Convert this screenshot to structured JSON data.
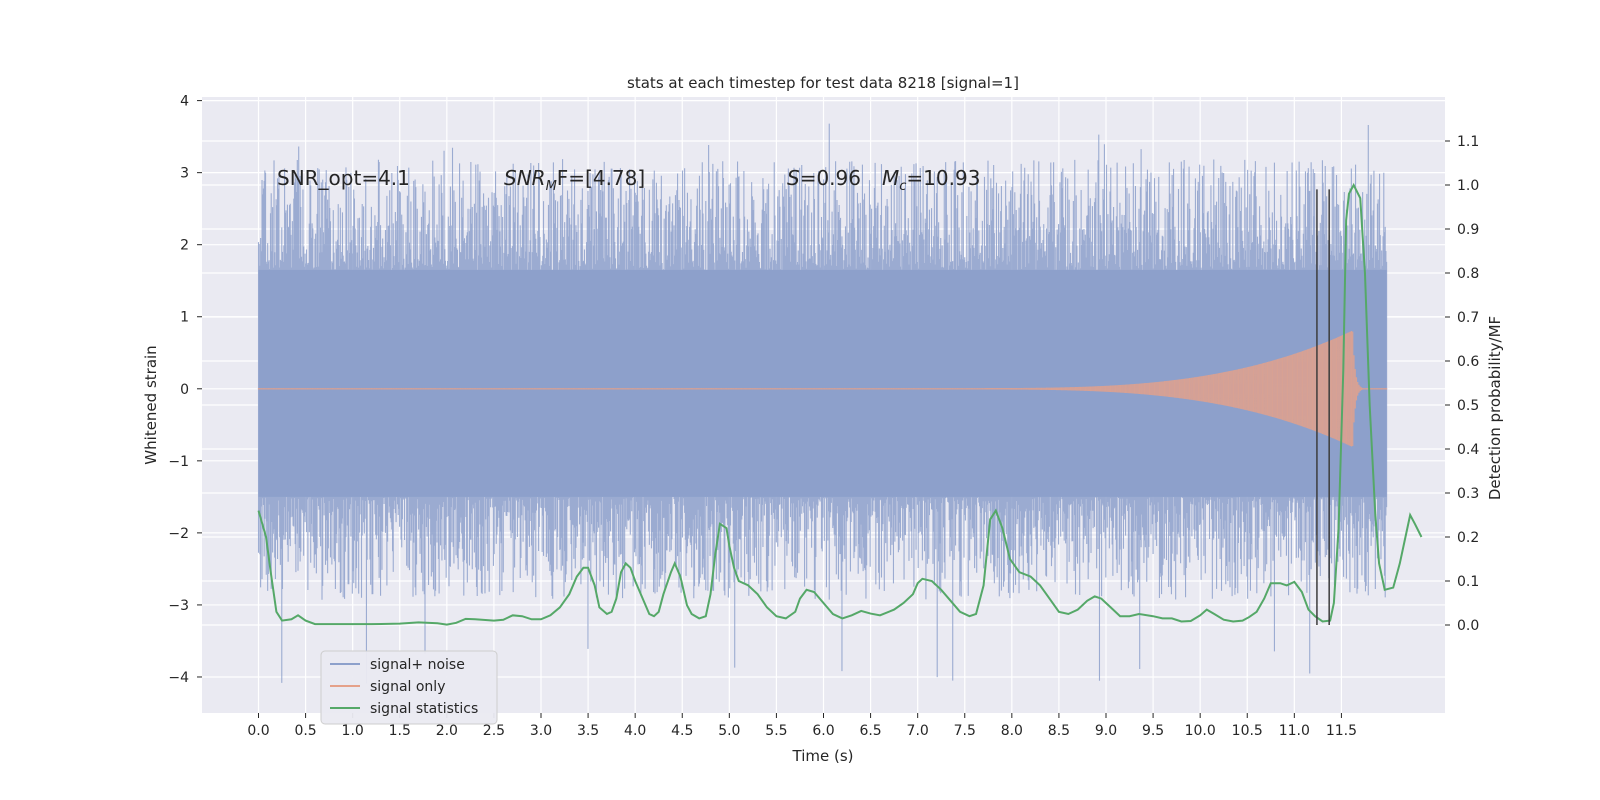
{
  "chart_data": {
    "type": "line",
    "title": "stats at each timestep for test data 8218 [signal=1]",
    "xlabel": "Time (s)",
    "ylabel_left": "Whitened strain",
    "ylabel_right": "Detection probability/MF",
    "xlim": [
      -0.6,
      12.6
    ],
    "ylim_left": [
      -4.5,
      4.05
    ],
    "ylim_right": [
      -0.2,
      1.2
    ],
    "x_ticks": [
      "0.0",
      "0.5",
      "1.0",
      "1.5",
      "2.0",
      "2.5",
      "3.0",
      "3.5",
      "4.0",
      "4.5",
      "5.0",
      "5.5",
      "6.0",
      "6.5",
      "7.0",
      "7.5",
      "8.0",
      "8.5",
      "9.0",
      "9.5",
      "10.0",
      "10.5",
      "11.0",
      "11.5"
    ],
    "y_ticks_left": [
      "4",
      "3",
      "2",
      "1",
      "0",
      "−1",
      "−2",
      "−3",
      "−4"
    ],
    "y_ticks_right": [
      "1.1",
      "1.0",
      "0.9",
      "0.8",
      "0.7",
      "0.6",
      "0.5",
      "0.4",
      "0.3",
      "0.2",
      "0.1",
      "0.0"
    ],
    "annotations": {
      "snr_opt": "SNR_opt=4.1",
      "snr_mf_base": "SNR",
      "snr_mf_sub": "M",
      "snr_mf_rest": "F=[4.78]",
      "s_base": "S",
      "s_value": "=0.96",
      "mc_base": "M",
      "mc_sub": "c",
      "mc_value": "=10.93"
    },
    "vlines_x": [
      11.24,
      11.37
    ],
    "vlines_range_right": [
      0.0,
      0.99
    ],
    "legend": {
      "placement": "lower-left",
      "entries": [
        {
          "label": "signal+ noise",
          "color": "#8da0cb"
        },
        {
          "label": "signal only",
          "color": "#e5a18a"
        },
        {
          "label": "signal statistics",
          "color": "#55a868"
        }
      ]
    },
    "series": [
      {
        "name": "signal+ noise",
        "axis": "left",
        "color": "#8da0cb",
        "x_range": [
          0.0,
          11.98
        ],
        "core_band": [
          -1.5,
          1.65
        ],
        "max_peak": 3.7,
        "min_peak": -4.1
      },
      {
        "name": "signal only",
        "axis": "left",
        "color": "#e5a18a",
        "x_range": [
          0.0,
          11.98
        ],
        "chirp_start": 7.5,
        "peak_time": 11.62,
        "peak_amplitude": 0.8
      },
      {
        "name": "signal statistics",
        "axis": "right",
        "color": "#55a868",
        "points": [
          [
            0.0,
            0.26
          ],
          [
            0.08,
            0.2
          ],
          [
            0.13,
            0.12
          ],
          [
            0.19,
            0.03
          ],
          [
            0.25,
            0.01
          ],
          [
            0.35,
            0.013
          ],
          [
            0.42,
            0.022
          ],
          [
            0.5,
            0.01
          ],
          [
            0.6,
            0.002
          ],
          [
            0.8,
            0.002
          ],
          [
            1.0,
            0.002
          ],
          [
            1.2,
            0.002
          ],
          [
            1.5,
            0.003
          ],
          [
            1.7,
            0.006
          ],
          [
            1.9,
            0.004
          ],
          [
            2.0,
            0.001
          ],
          [
            2.1,
            0.005
          ],
          [
            2.2,
            0.014
          ],
          [
            2.3,
            0.013
          ],
          [
            2.5,
            0.01
          ],
          [
            2.6,
            0.012
          ],
          [
            2.7,
            0.022
          ],
          [
            2.8,
            0.02
          ],
          [
            2.9,
            0.013
          ],
          [
            3.0,
            0.013
          ],
          [
            3.1,
            0.022
          ],
          [
            3.2,
            0.04
          ],
          [
            3.3,
            0.07
          ],
          [
            3.38,
            0.11
          ],
          [
            3.45,
            0.13
          ],
          [
            3.5,
            0.13
          ],
          [
            3.57,
            0.09
          ],
          [
            3.62,
            0.04
          ],
          [
            3.7,
            0.025
          ],
          [
            3.75,
            0.03
          ],
          [
            3.8,
            0.06
          ],
          [
            3.85,
            0.12
          ],
          [
            3.9,
            0.14
          ],
          [
            3.95,
            0.13
          ],
          [
            4.0,
            0.1
          ],
          [
            4.1,
            0.05
          ],
          [
            4.15,
            0.025
          ],
          [
            4.2,
            0.02
          ],
          [
            4.25,
            0.03
          ],
          [
            4.3,
            0.07
          ],
          [
            4.38,
            0.12
          ],
          [
            4.42,
            0.14
          ],
          [
            4.48,
            0.11
          ],
          [
            4.55,
            0.045
          ],
          [
            4.6,
            0.025
          ],
          [
            4.68,
            0.015
          ],
          [
            4.75,
            0.02
          ],
          [
            4.8,
            0.07
          ],
          [
            4.85,
            0.16
          ],
          [
            4.9,
            0.23
          ],
          [
            4.97,
            0.22
          ],
          [
            5.0,
            0.18
          ],
          [
            5.05,
            0.13
          ],
          [
            5.1,
            0.1
          ],
          [
            5.2,
            0.09
          ],
          [
            5.3,
            0.07
          ],
          [
            5.4,
            0.04
          ],
          [
            5.5,
            0.02
          ],
          [
            5.6,
            0.015
          ],
          [
            5.7,
            0.03
          ],
          [
            5.75,
            0.06
          ],
          [
            5.82,
            0.08
          ],
          [
            5.9,
            0.075
          ],
          [
            6.0,
            0.05
          ],
          [
            6.1,
            0.025
          ],
          [
            6.2,
            0.015
          ],
          [
            6.3,
            0.022
          ],
          [
            6.4,
            0.032
          ],
          [
            6.5,
            0.026
          ],
          [
            6.6,
            0.022
          ],
          [
            6.75,
            0.035
          ],
          [
            6.85,
            0.05
          ],
          [
            6.95,
            0.07
          ],
          [
            7.0,
            0.095
          ],
          [
            7.05,
            0.105
          ],
          [
            7.15,
            0.1
          ],
          [
            7.25,
            0.08
          ],
          [
            7.35,
            0.055
          ],
          [
            7.45,
            0.03
          ],
          [
            7.55,
            0.02
          ],
          [
            7.62,
            0.025
          ],
          [
            7.7,
            0.09
          ],
          [
            7.77,
            0.24
          ],
          [
            7.83,
            0.26
          ],
          [
            7.9,
            0.22
          ],
          [
            7.98,
            0.15
          ],
          [
            8.08,
            0.12
          ],
          [
            8.2,
            0.11
          ],
          [
            8.3,
            0.09
          ],
          [
            8.4,
            0.06
          ],
          [
            8.5,
            0.03
          ],
          [
            8.6,
            0.025
          ],
          [
            8.7,
            0.035
          ],
          [
            8.8,
            0.055
          ],
          [
            8.88,
            0.065
          ],
          [
            8.95,
            0.06
          ],
          [
            9.05,
            0.04
          ],
          [
            9.15,
            0.02
          ],
          [
            9.25,
            0.02
          ],
          [
            9.35,
            0.025
          ],
          [
            9.5,
            0.02
          ],
          [
            9.6,
            0.015
          ],
          [
            9.7,
            0.015
          ],
          [
            9.8,
            0.008
          ],
          [
            9.9,
            0.009
          ],
          [
            10.0,
            0.022
          ],
          [
            10.07,
            0.035
          ],
          [
            10.15,
            0.025
          ],
          [
            10.25,
            0.012
          ],
          [
            10.35,
            0.008
          ],
          [
            10.45,
            0.01
          ],
          [
            10.52,
            0.018
          ],
          [
            10.6,
            0.03
          ],
          [
            10.68,
            0.06
          ],
          [
            10.75,
            0.095
          ],
          [
            10.85,
            0.095
          ],
          [
            10.92,
            0.09
          ],
          [
            11.0,
            0.098
          ],
          [
            11.08,
            0.075
          ],
          [
            11.15,
            0.035
          ],
          [
            11.22,
            0.02
          ],
          [
            11.3,
            0.008
          ],
          [
            11.38,
            0.01
          ],
          [
            11.42,
            0.05
          ],
          [
            11.47,
            0.22
          ],
          [
            11.52,
            0.58
          ],
          [
            11.55,
            0.92
          ],
          [
            11.58,
            0.98
          ],
          [
            11.63,
            1.0
          ],
          [
            11.7,
            0.97
          ],
          [
            11.75,
            0.8
          ],
          [
            11.8,
            0.5
          ],
          [
            11.86,
            0.25
          ],
          [
            11.9,
            0.14
          ],
          [
            11.96,
            0.08
          ],
          [
            12.05,
            0.085
          ],
          [
            12.12,
            0.14
          ],
          [
            12.18,
            0.2
          ],
          [
            12.23,
            0.25
          ],
          [
            12.28,
            0.23
          ],
          [
            12.35,
            0.2
          ]
        ]
      }
    ]
  }
}
